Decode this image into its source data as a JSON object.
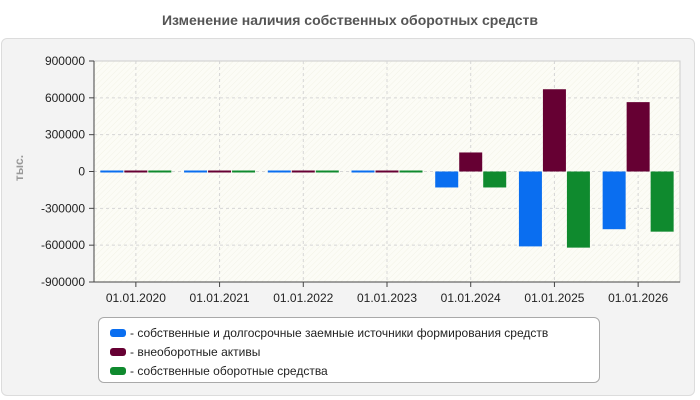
{
  "chart_data": {
    "type": "bar",
    "title": "Изменение наличия собственных оборотных средств",
    "ylabel": "тыс.",
    "xlabel": "",
    "ylim": [
      -900000,
      900000
    ],
    "yticks": [
      900000,
      600000,
      300000,
      0,
      -300000,
      -600000,
      -900000
    ],
    "ytick_labels": [
      "900000",
      "600000",
      "300000",
      "0",
      "-300000",
      "-600000",
      "-900000"
    ],
    "categories": [
      "01.01.2020",
      "01.01.2021",
      "01.01.2022",
      "01.01.2023",
      "01.01.2024",
      "01.01.2025",
      "01.01.2026"
    ],
    "grid": true,
    "legend_position": "bottom",
    "series": [
      {
        "name": "- собственные и долгосрочные заемные источники формирования средств",
        "color": "#0a6ef0",
        "values": [
          0,
          0,
          0,
          0,
          -130000,
          -610000,
          -470000
        ]
      },
      {
        "name": "- внеоборотные активы",
        "color": "#660033",
        "values": [
          0,
          0,
          0,
          0,
          155000,
          670000,
          565000
        ]
      },
      {
        "name": "- собственные оборотные средства",
        "color": "#0f8a2e",
        "values": [
          0,
          0,
          0,
          0,
          -130000,
          -620000,
          -490000
        ]
      }
    ]
  }
}
